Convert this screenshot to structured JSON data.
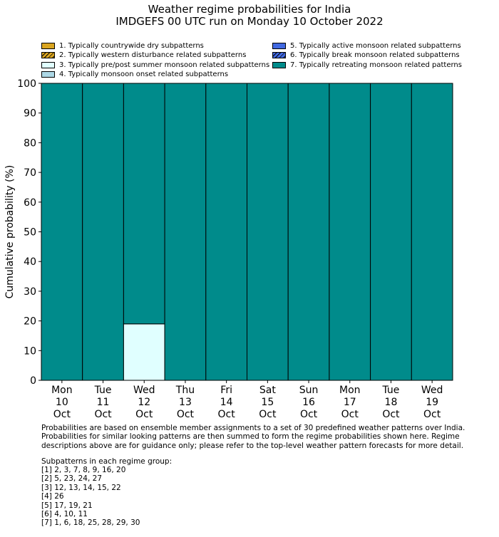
{
  "chart_data": {
    "type": "bar",
    "stacked": true,
    "title": "Weather regime probabilities for India",
    "subtitle": "IMDGEFS 00 UTC run on Monday 10 October 2022",
    "ylabel": "Cumulative probability (%)",
    "xlabel": "",
    "ylim": [
      0,
      100
    ],
    "yticks": [
      0,
      10,
      20,
      30,
      40,
      50,
      60,
      70,
      80,
      90,
      100
    ],
    "grid": false,
    "legend_placement": "top",
    "categories": [
      [
        "Mon",
        "10",
        "Oct"
      ],
      [
        "Tue",
        "11",
        "Oct"
      ],
      [
        "Wed",
        "12",
        "Oct"
      ],
      [
        "Thu",
        "13",
        "Oct"
      ],
      [
        "Fri",
        "14",
        "Oct"
      ],
      [
        "Sat",
        "15",
        "Oct"
      ],
      [
        "Sun",
        "16",
        "Oct"
      ],
      [
        "Mon",
        "17",
        "Oct"
      ],
      [
        "Tue",
        "18",
        "Oct"
      ],
      [
        "Wed",
        "19",
        "Oct"
      ]
    ],
    "series": [
      {
        "name": "1. Typically countrywide dry subpatterns",
        "color": "#DAA520",
        "hatch": false,
        "values": [
          0,
          0,
          0,
          0,
          0,
          0,
          0,
          0,
          0,
          0
        ]
      },
      {
        "name": "2. Typically western disturbance related subpatterns",
        "color": "#DAA520",
        "hatch": true,
        "values": [
          0,
          0,
          0,
          0,
          0,
          0,
          0,
          0,
          0,
          0
        ]
      },
      {
        "name": "3. Typically pre/post summer monsoon related subpatterns",
        "color": "#E0FFFF",
        "hatch": false,
        "values": [
          0,
          0,
          19,
          0,
          0,
          0,
          0,
          0,
          0,
          0
        ]
      },
      {
        "name": "4. Typically monsoon onset related subpatterns",
        "color": "#ADD8E6",
        "hatch": false,
        "values": [
          0,
          0,
          0,
          0,
          0,
          0,
          0,
          0,
          0,
          0
        ]
      },
      {
        "name": "5. Typically active monsoon related subpatterns",
        "color": "#4169E1",
        "hatch": false,
        "values": [
          0,
          0,
          0,
          0,
          0,
          0,
          0,
          0,
          0,
          0
        ]
      },
      {
        "name": "6. Typically break monsoon related subpatterns",
        "color": "#4169E1",
        "hatch": true,
        "values": [
          0,
          0,
          0,
          0,
          0,
          0,
          0,
          0,
          0,
          0
        ]
      },
      {
        "name": "7. Typically retreating monsoon related patterns",
        "color": "#008B8B",
        "hatch": false,
        "values": [
          100,
          100,
          81,
          100,
          100,
          100,
          100,
          100,
          100,
          100
        ]
      }
    ]
  },
  "footer": {
    "note": "Probabilities are based on ensemble member assignments to a set of 30 predefined weather patterns over India.\nProbabilities for similar looking patterns are then summed to form the regime probabilities shown here. Regime\ndescriptions above are for guidance only; please refer to the top-level weather pattern forecasts for more detail.",
    "groups_heading": "Subpatterns in each regime group:",
    "groups": [
      "[1] 2, 3, 7, 8, 9, 16, 20",
      "[2] 5, 23, 24, 27",
      "[3] 12, 13, 14, 15, 22",
      "[4] 26",
      "[5] 17, 19, 21",
      "[6] 4, 10, 11",
      "[7] 1, 6, 18, 25, 28, 29, 30"
    ]
  }
}
